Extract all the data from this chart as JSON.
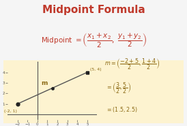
{
  "title": "Midpoint Formula",
  "title_color": "#c0392b",
  "bg_color": "#f5f5f5",
  "box_color": "#fdf3d0",
  "formula_color": "#c0392b",
  "point1": [
    -2,
    1
  ],
  "point2": [
    5,
    4
  ],
  "midpoint": [
    1.5,
    2.5
  ],
  "midpoint_label": "m",
  "point1_label": "(-2, 1)",
  "point2_label": "(5, 4)",
  "line_color": "#555555",
  "dot_color": "#222222",
  "axis_color": "#555555",
  "xlim": [
    -3,
    6
  ],
  "ylim": [
    -0.5,
    5
  ],
  "calc_color": "#8B6914",
  "box_edge_color": "#d4b896"
}
